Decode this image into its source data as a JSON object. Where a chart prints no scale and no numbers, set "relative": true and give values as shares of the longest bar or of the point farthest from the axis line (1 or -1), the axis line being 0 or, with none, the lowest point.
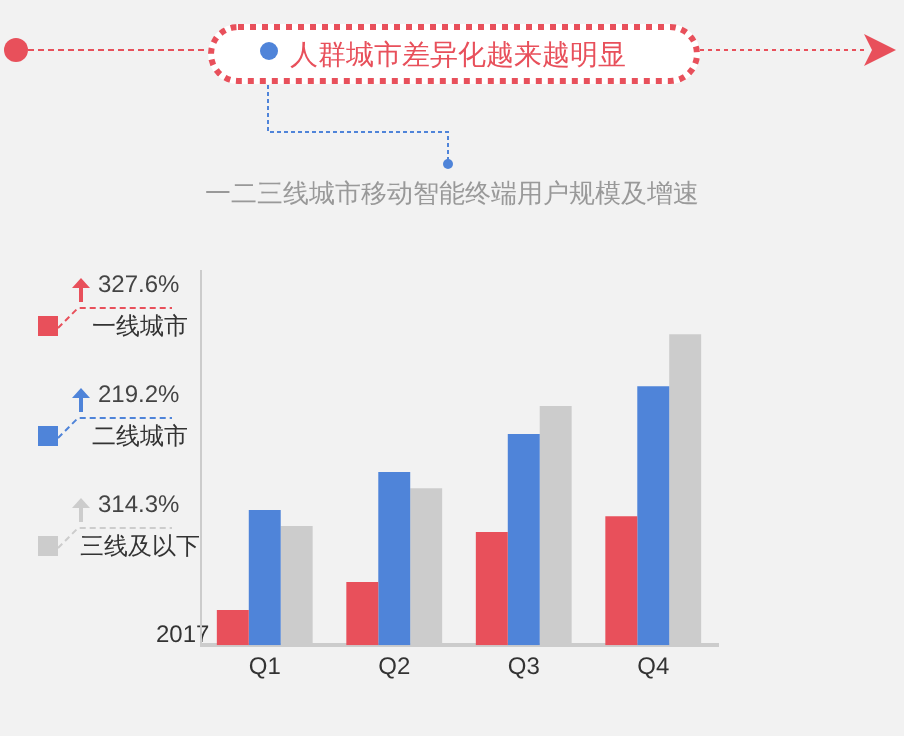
{
  "chart_data": {
    "type": "bar",
    "title": "人群城市差异化越来越明显",
    "subtitle": "一二三线城市移动智能终端用户规模及增速",
    "relative": true,
    "categories": [
      "Q1",
      "Q2",
      "Q3",
      "Q4"
    ],
    "series": [
      {
        "name": "一线城市",
        "color": "#e8505b",
        "values": [
          0.113,
          0.203,
          0.364,
          0.415
        ]
      },
      {
        "name": "二线城市",
        "color": "#4f84d9",
        "values": [
          0.435,
          0.557,
          0.679,
          0.833
        ]
      },
      {
        "name": "三线及以下",
        "color": "#cccccc",
        "values": [
          0.383,
          0.505,
          0.769,
          1
        ]
      }
    ],
    "legend": "left",
    "grid": false,
    "annotations": [
      "327.6%",
      "219.2%",
      "314.3%",
      "2017"
    ]
  }
}
